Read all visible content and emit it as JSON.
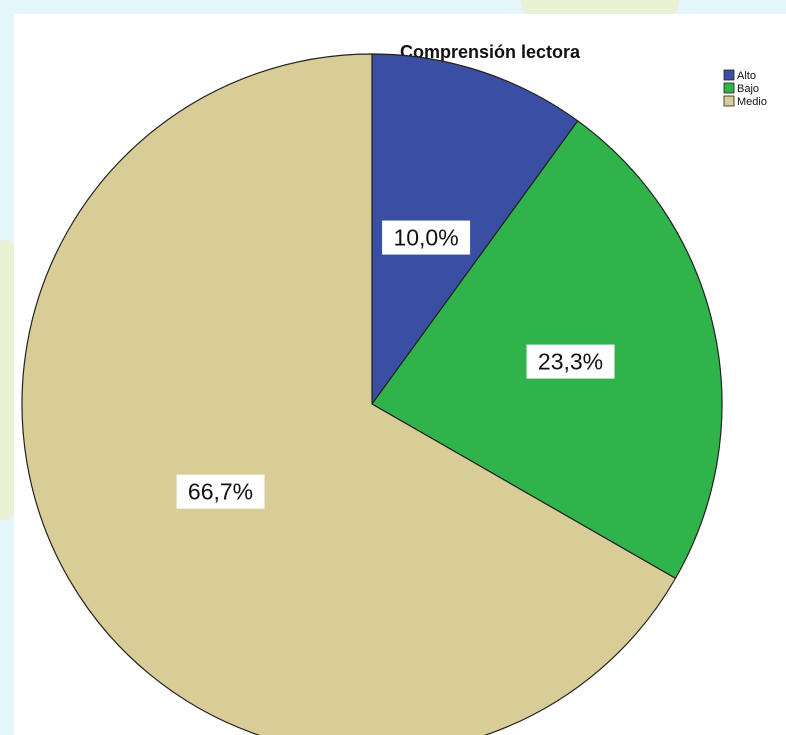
{
  "chart_data": {
    "type": "pie",
    "title": "Comprensión lectora",
    "start_angle_deg": 0,
    "direction": "clockwise",
    "legend_position": "top-right",
    "slices": [
      {
        "name": "Alto",
        "value": 10.0,
        "label": "10,0%",
        "color": "#3a4fa3"
      },
      {
        "name": "Bajo",
        "value": 23.3,
        "label": "23,3%",
        "color": "#2fb34a"
      },
      {
        "name": "Medio",
        "value": 66.7,
        "label": "66,7%",
        "color": "#d8cd96"
      }
    ]
  },
  "colors": {
    "background": "#e4f6fc",
    "chart_area": "#ffffff",
    "watermark": "#f5e98a",
    "outline": "#222222"
  }
}
